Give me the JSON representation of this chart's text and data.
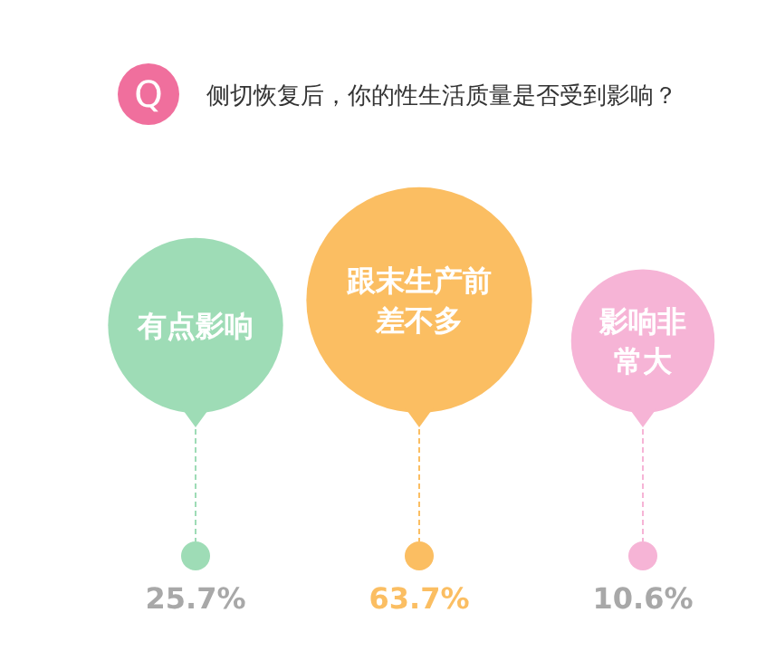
{
  "chart_data": {
    "type": "other",
    "title": "侧切恢复后，你的性生活质量是否受到影响？",
    "annotations": [
      "Q"
    ],
    "categories": [
      "有点影响",
      "跟末生产前差不多",
      "影响非常大"
    ],
    "values": [
      25.7,
      63.7,
      10.6
    ],
    "colors": [
      "#9edcb6",
      "#fbbe62",
      "#f6b4d6"
    ],
    "value_labels": [
      "25.7%",
      "63.7%",
      "10.6%"
    ]
  }
}
